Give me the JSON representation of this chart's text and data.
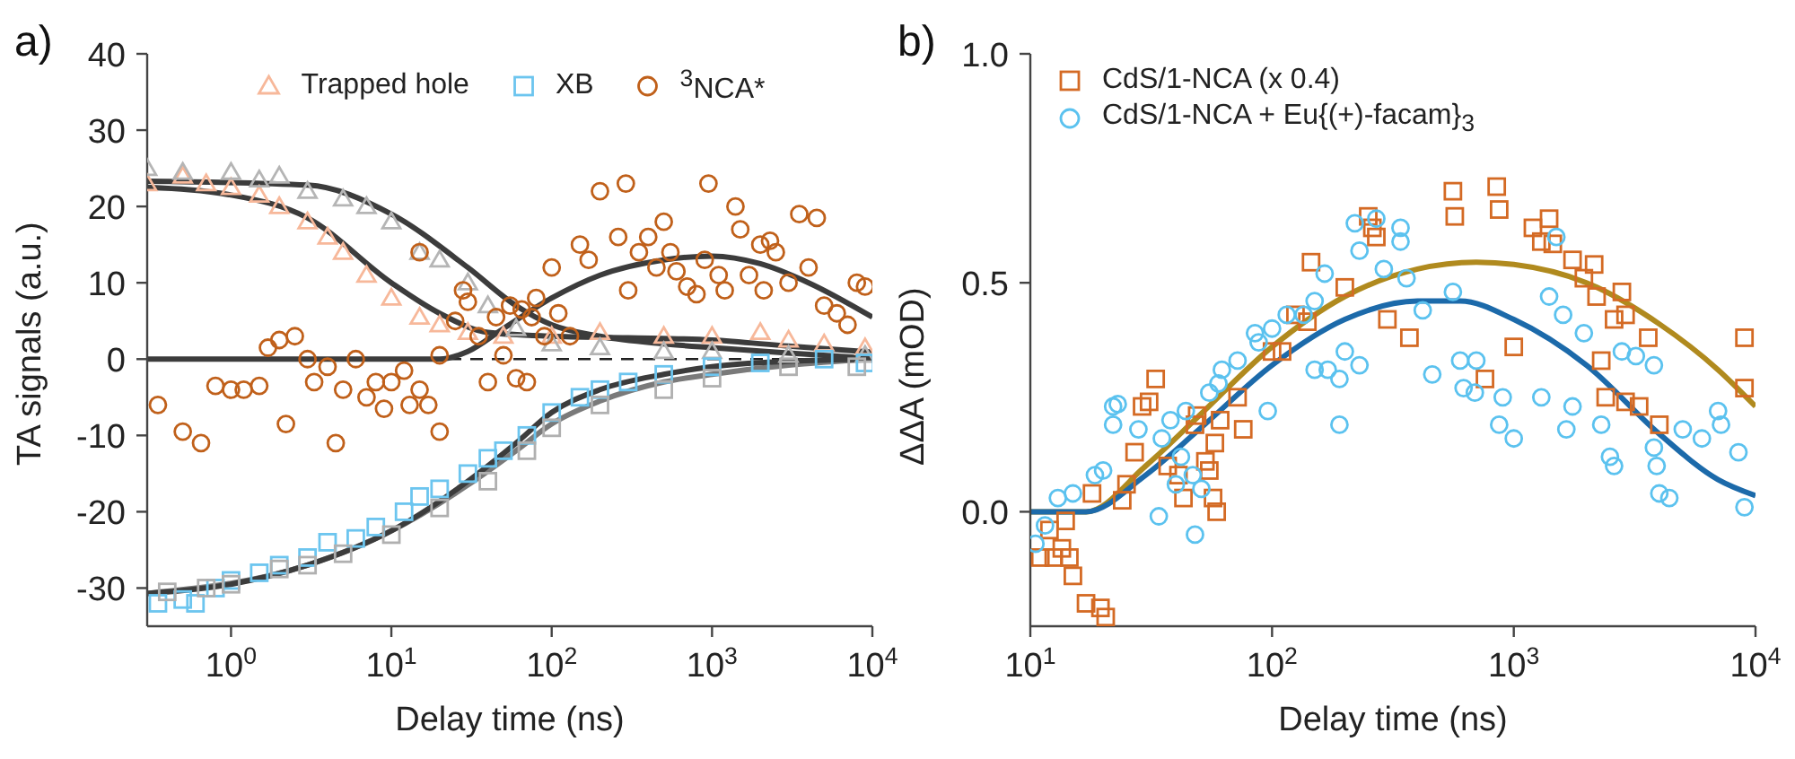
{
  "chart_data": [
    {
      "type": "scatter",
      "annotations": [
        "a)"
      ],
      "xlabel": "Delay time (ns)",
      "ylabel": "TA signals (a.u.)",
      "log": "x",
      "legend": "top",
      "xlim": [
        0.3,
        10000
      ],
      "ylim": [
        -35,
        40
      ],
      "xticks": [
        {
          "value": 1,
          "label": "10$^{0}$"
        },
        {
          "value": 10,
          "label": "10$^{1}$"
        },
        {
          "value": 100,
          "label": "10$^{2}$"
        },
        {
          "value": 1000,
          "label": "10$^{3}$"
        },
        {
          "value": 10000,
          "label": "10$^{4}$"
        }
      ],
      "yticks": [
        -30,
        -20,
        -10,
        0,
        10,
        20,
        30,
        40
      ],
      "ref_lines": [
        {
          "axis": "y",
          "value": 0,
          "color": "#202020",
          "line_style": "dashed"
        }
      ],
      "series": [
        {
          "name": "Trapped hole",
          "marker": "triangle",
          "color": "#f7b89a",
          "x": [
            0.3,
            0.5,
            0.7,
            1,
            1.5,
            2,
            3,
            4,
            5,
            7,
            10,
            15,
            20,
            30,
            50,
            100,
            200,
            500,
            1000,
            2000,
            3000,
            5000,
            9000
          ],
          "values": [
            23,
            24,
            23,
            22.5,
            21.5,
            20,
            18,
            16,
            14,
            11,
            8,
            5.5,
            4.5,
            3.5,
            3,
            3,
            3.5,
            3,
            3,
            3.5,
            2.5,
            2,
            1.5
          ]
        },
        {
          "marker": "triangle",
          "color": "#b5b5b5",
          "x": [
            0.3,
            0.5,
            1,
            1.5,
            2,
            3,
            5,
            7,
            10,
            15,
            20,
            30,
            40,
            60,
            100,
            200,
            500,
            1000,
            3000,
            9000
          ],
          "values": [
            25,
            24.5,
            24.5,
            23.5,
            24,
            22,
            21,
            20,
            18,
            14,
            13,
            10,
            7,
            4,
            2,
            1.5,
            1,
            1,
            0.5,
            0.5
          ]
        },
        {
          "name": "XB",
          "marker": "square",
          "color": "#6cc5ef",
          "x": [
            0.35,
            0.5,
            0.6,
            0.8,
            1,
            1.5,
            2,
            3,
            4,
            6,
            8,
            12,
            15,
            20,
            30,
            40,
            50,
            70,
            100,
            150,
            200,
            300,
            500,
            1000,
            2000,
            5000,
            9000
          ],
          "values": [
            -32,
            -31.5,
            -32,
            -30,
            -29,
            -28,
            -27,
            -26,
            -24,
            -23.5,
            -22,
            -20,
            -18,
            -17,
            -15,
            -13,
            -12,
            -10,
            -7,
            -5,
            -4,
            -3,
            -2,
            -1,
            -0.5,
            0,
            -0.5
          ]
        },
        {
          "marker": "square",
          "color": "#b0b0b0",
          "x": [
            0.4,
            0.7,
            1,
            2,
            3,
            5,
            10,
            20,
            40,
            70,
            100,
            200,
            500,
            1000,
            3000,
            8000
          ],
          "values": [
            -30.5,
            -30,
            -29.5,
            -27.5,
            -27,
            -25.5,
            -23,
            -19.5,
            -16,
            -12,
            -9,
            -6,
            -4,
            -2.5,
            -1,
            -1
          ]
        },
        {
          "name": "$^{3}$NCA*",
          "marker": "circle",
          "color": "#c0601a",
          "x": [
            0.35,
            0.5,
            0.65,
            0.8,
            1,
            1.2,
            1.5,
            1.7,
            2,
            2.2,
            2.5,
            3,
            3.3,
            4,
            4.5,
            5,
            6,
            7,
            8,
            9,
            10,
            12,
            13,
            15,
            17,
            20,
            15,
            20,
            25,
            28,
            30,
            35,
            40,
            45,
            50,
            55,
            60,
            65,
            70,
            75,
            80,
            90,
            100,
            110,
            130,
            150,
            170,
            200,
            290,
            260,
            300,
            350,
            400,
            450,
            500,
            550,
            600,
            700,
            800,
            900,
            950,
            1100,
            1200,
            1400,
            1500,
            1700,
            2000,
            2100,
            2300,
            2500,
            3000,
            3500,
            4000,
            4500,
            5000,
            6000,
            7000,
            8000,
            9000
          ],
          "values": [
            -6,
            -9.5,
            -11,
            -3.5,
            -4,
            -4,
            -3.5,
            1.5,
            2.5,
            -8.5,
            3,
            0,
            -3,
            -1,
            -11,
            -4,
            0,
            -5,
            -3,
            -6.5,
            -3,
            -1.5,
            -6,
            -4,
            -6,
            -9.5,
            14,
            0.5,
            5,
            9,
            7.5,
            3,
            -3,
            5.5,
            0.5,
            7,
            -2.5,
            6.5,
            -3,
            5.5,
            8,
            3,
            12,
            6,
            3,
            15,
            13,
            22,
            23,
            16,
            9,
            14,
            16,
            12,
            18,
            14,
            11.5,
            9.5,
            8.5,
            13,
            23,
            11,
            9,
            20,
            17,
            11,
            15,
            9,
            15.5,
            14,
            10,
            19,
            12,
            18.5,
            7,
            6,
            4.5,
            10,
            9.5
          ]
        },
        {
          "type": "line",
          "line_style": "solid",
          "color": "#3c3c3c",
          "x": [
            0.3,
            1,
            3,
            10,
            20,
            40,
            100,
            300,
            1000,
            3000,
            10000
          ],
          "values": [
            22.5,
            21.5,
            18.5,
            10,
            6,
            3.5,
            3,
            2.8,
            2.5,
            1.7,
            0.9
          ]
        },
        {
          "type": "line",
          "line_style": "solid",
          "color": "#3c3c3c",
          "x": [
            0.3,
            3,
            10,
            30,
            60,
            100,
            200,
            500,
            1000,
            3000,
            10000
          ],
          "values": [
            23.3,
            22.8,
            19,
            12,
            7,
            4.5,
            3,
            2,
            1.5,
            0.8,
            0.1
          ]
        },
        {
          "type": "line",
          "line_style": "solid",
          "color": "#7a7a7a",
          "x": [
            0.3,
            3,
            10,
            30,
            60,
            100,
            200,
            500,
            1000,
            3000,
            10000
          ],
          "values": [
            -30.7,
            -27,
            -22.5,
            -16.5,
            -12,
            -8.5,
            -5.5,
            -3,
            -2,
            -0.8,
            0
          ]
        },
        {
          "type": "line",
          "line_style": "solid",
          "color": "#3c3c3c",
          "x": [
            0.3,
            1,
            3,
            10,
            30,
            60,
            100,
            200,
            500,
            1000,
            3000,
            10000
          ],
          "values": [
            -30.7,
            -29.5,
            -27,
            -22.5,
            -16,
            -11,
            -7,
            -4,
            -2,
            -1,
            -0.3,
            0
          ]
        },
        {
          "type": "line",
          "line_style": "solid",
          "color": "#3c3c3c",
          "x": [
            0.3,
            20,
            30,
            50,
            100,
            200,
            500,
            1000,
            2000,
            4000,
            10000
          ],
          "values": [
            0,
            0,
            1,
            4,
            8,
            11,
            13,
            13.5,
            12.5,
            10,
            5.5
          ]
        }
      ]
    },
    {
      "type": "scatter",
      "annotations": [
        "b)"
      ],
      "xlabel": "Delay time (ns)",
      "ylabel": "ΔΔA (mOD)",
      "log": "x",
      "legend": "top left",
      "xlim": [
        10,
        10000
      ],
      "ylim": [
        -0.25,
        1.0
      ],
      "xticks": [
        {
          "value": 10,
          "label": "10$^{1}$"
        },
        {
          "value": 100,
          "label": "10$^{2}$"
        },
        {
          "value": 1000,
          "label": "10$^{3}$"
        },
        {
          "value": 10000,
          "label": "10$^{4}$"
        }
      ],
      "yticks": [
        {
          "value": 0,
          "label": "0.0"
        },
        {
          "value": 0.5,
          "label": "0.5"
        },
        {
          "value": 1,
          "label": "1.0"
        }
      ],
      "series": [
        {
          "name": "CdS/1-NCA (x 0.4)",
          "marker": "square",
          "color": "#d46a24",
          "x": [
            560,
            850,
            870,
            250,
            260,
            270,
            145,
            570,
            1200,
            1400,
            1300,
            1450,
            1750,
            2150,
            2800,
            2200,
            1950,
            9000,
            370,
            300,
            200,
            140,
            125,
            110,
            100,
            1000,
            2300,
            2600,
            2900,
            3600,
            33,
            31,
            29,
            49,
            48,
            58,
            53,
            55,
            37,
            41,
            43,
            27,
            25,
            24,
            18,
            14,
            12,
            12.5,
            13.5,
            14.5,
            11,
            15,
            17,
            19.5,
            20.5,
            57,
            59,
            61,
            72,
            76,
            760,
            2400,
            2900,
            3300,
            4000,
            9000
          ],
          "values": [
            0.7,
            0.71,
            0.66,
            0.645,
            0.62,
            0.6,
            0.545,
            0.645,
            0.62,
            0.64,
            0.59,
            0.585,
            0.55,
            0.54,
            0.48,
            0.47,
            0.51,
            0.38,
            0.38,
            0.42,
            0.49,
            0.415,
            0.43,
            0.35,
            0.35,
            0.36,
            0.33,
            0.42,
            0.43,
            0.38,
            0.29,
            0.24,
            0.23,
            0.21,
            0.19,
            0.15,
            0.11,
            0.09,
            0.1,
            0.08,
            0.03,
            0.13,
            0.06,
            0.025,
            0.04,
            -0.02,
            -0.04,
            -0.1,
            -0.08,
            -0.1,
            -0.1,
            -0.14,
            -0.2,
            -0.21,
            -0.23,
            0.03,
            0,
            0.2,
            0.25,
            0.18,
            0.29,
            0.25,
            0.24,
            0.23,
            0.19,
            0.27
          ]
        },
        {
          "name": "CdS/1-NCA + Eu{(+)-facam}$_{3}$",
          "marker": "circle",
          "color": "#5bc2ef",
          "x": [
            220,
            270,
            340,
            230,
            290,
            340,
            360,
            420,
            560,
            1500,
            1400,
            1600,
            165,
            150,
            135,
            115,
            100,
            85,
            88,
            72,
            200,
            230,
            460,
            600,
            700,
            1950,
            2800,
            3200,
            3800,
            150,
            170,
            190,
            190,
            96,
            62,
            60,
            55,
            44,
            38,
            35,
            28,
            22,
            23,
            22,
            20,
            18.5,
            15,
            13,
            11.5,
            10.5,
            48,
            34,
            42,
            47,
            40,
            51,
            620,
            690,
            900,
            870,
            1000,
            1300,
            1650,
            1750,
            2300,
            2600,
            2500,
            3800,
            3900,
            4000,
            4400,
            5000,
            6000,
            7200,
            8500,
            9000,
            7000
          ],
          "values": [
            0.63,
            0.64,
            0.62,
            0.57,
            0.53,
            0.59,
            0.51,
            0.44,
            0.48,
            0.6,
            0.47,
            0.43,
            0.52,
            0.46,
            0.43,
            0.43,
            0.4,
            0.39,
            0.37,
            0.33,
            0.35,
            0.32,
            0.3,
            0.33,
            0.33,
            0.39,
            0.35,
            0.34,
            0.32,
            0.31,
            0.31,
            0.29,
            0.19,
            0.22,
            0.31,
            0.28,
            0.26,
            0.22,
            0.2,
            0.16,
            0.18,
            0.23,
            0.235,
            0.19,
            0.09,
            0.08,
            0.04,
            0.03,
            -0.03,
            -0.07,
            -0.05,
            -0.01,
            0.12,
            0.08,
            0.06,
            0.05,
            0.27,
            0.26,
            0.25,
            0.19,
            0.16,
            0.25,
            0.18,
            0.23,
            0.19,
            0.1,
            0.12,
            0.14,
            0.1,
            0.04,
            0.03,
            0.18,
            0.16,
            0.19,
            0.13,
            0.01,
            0.22
          ]
        },
        {
          "type": "line",
          "line_style": "solid",
          "color": "#b08a1e",
          "x": [
            10,
            17,
            30,
            50,
            100,
            200,
            400,
            700,
            1000,
            2000,
            4000,
            7000,
            10000
          ],
          "values": [
            0,
            0,
            0.1,
            0.21,
            0.36,
            0.47,
            0.53,
            0.545,
            0.54,
            0.5,
            0.41,
            0.31,
            0.23
          ]
        },
        {
          "type": "line",
          "line_style": "solid",
          "color": "#1c6aaa",
          "x": [
            10,
            17,
            30,
            50,
            100,
            200,
            400,
            600,
            1000,
            2000,
            4000,
            7000,
            10000
          ],
          "values": [
            0,
            0,
            0.08,
            0.18,
            0.32,
            0.42,
            0.46,
            0.46,
            0.42,
            0.32,
            0.17,
            0.07,
            0.035
          ]
        }
      ]
    }
  ]
}
